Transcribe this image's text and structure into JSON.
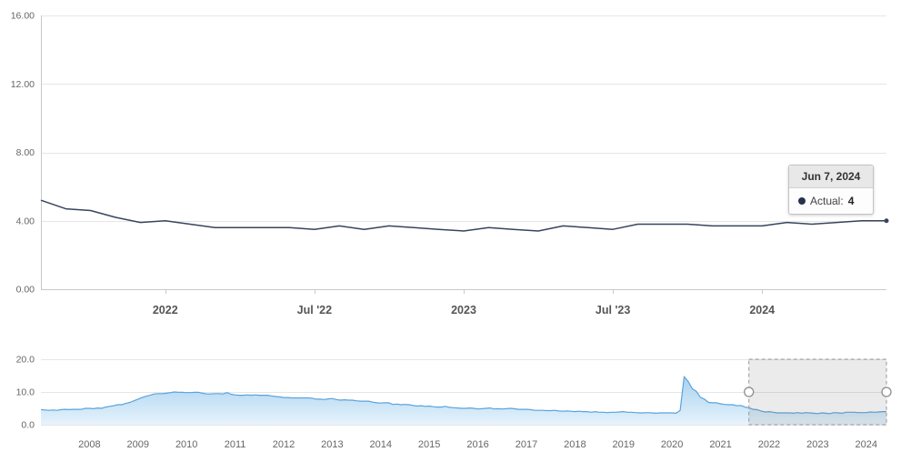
{
  "colors": {
    "main_line": "#36455e",
    "grid": "#e6e6e6",
    "axis": "#c9c9c9",
    "axis_label": "#666666",
    "x_label": "#555555",
    "nav_line": "#5ba3dc",
    "nav_fill_top": "#a9d2ef",
    "nav_fill_bottom": "#e6f3fc",
    "mask_fill": "#6f6f6f",
    "mask_border": "#999999",
    "handle_fill": "#ffffff",
    "handle_stroke": "#8c8c8c",
    "tooltip_marker": "#26334d"
  },
  "tooltip": {
    "date": "Jun 7, 2024",
    "series_label": "Actual:",
    "value": "4"
  },
  "chart_data": [
    {
      "type": "line",
      "name": "Actual",
      "interval": "monthly",
      "start_month": "2021-08",
      "values": [
        5.2,
        4.7,
        4.6,
        4.2,
        3.9,
        4.0,
        3.8,
        3.6,
        3.6,
        3.6,
        3.6,
        3.5,
        3.7,
        3.5,
        3.7,
        3.6,
        3.5,
        3.4,
        3.6,
        3.5,
        3.4,
        3.7,
        3.6,
        3.5,
        3.8,
        3.8,
        3.8,
        3.7,
        3.7,
        3.7,
        3.9,
        3.8,
        3.9,
        4.0,
        4.0
      ],
      "ylim": [
        0,
        16
      ],
      "yticks": [
        {
          "value": 16,
          "label": "16.00"
        },
        {
          "value": 12,
          "label": "12.00"
        },
        {
          "value": 8,
          "label": "8.00"
        },
        {
          "value": 4,
          "label": "4.00"
        },
        {
          "value": 0,
          "label": "0.00"
        }
      ],
      "xticks": [
        {
          "index": 5,
          "label": "2022"
        },
        {
          "index": 11,
          "label": "Jul '22"
        },
        {
          "index": 17,
          "label": "2023"
        },
        {
          "index": 23,
          "label": "Jul '23"
        },
        {
          "index": 29,
          "label": "2024"
        }
      ],
      "grid": "horizontal",
      "legend": "none"
    },
    {
      "type": "area",
      "role": "navigator",
      "interval": "monthly",
      "start_month": "2007-01",
      "values": [
        4.6,
        4.5,
        4.4,
        4.5,
        4.4,
        4.6,
        4.7,
        4.6,
        4.7,
        4.7,
        4.7,
        5.0,
        5.0,
        4.9,
        5.1,
        5.0,
        5.4,
        5.6,
        5.8,
        6.1,
        6.1,
        6.5,
        6.8,
        7.3,
        7.8,
        8.3,
        8.7,
        9.0,
        9.4,
        9.5,
        9.5,
        9.6,
        9.8,
        10.0,
        9.9,
        9.9,
        9.8,
        9.8,
        9.9,
        9.9,
        9.6,
        9.4,
        9.4,
        9.5,
        9.5,
        9.4,
        9.8,
        9.3,
        9.1,
        9.0,
        9.0,
        9.1,
        9.0,
        9.1,
        9.0,
        9.0,
        9.0,
        8.8,
        8.6,
        8.5,
        8.3,
        8.3,
        8.2,
        8.2,
        8.2,
        8.2,
        8.2,
        8.1,
        7.8,
        7.8,
        7.7,
        7.9,
        8.0,
        7.7,
        7.5,
        7.6,
        7.5,
        7.5,
        7.3,
        7.2,
        7.2,
        7.2,
        6.9,
        6.7,
        6.6,
        6.7,
        6.7,
        6.2,
        6.3,
        6.1,
        6.2,
        6.1,
        5.9,
        5.7,
        5.8,
        5.6,
        5.7,
        5.5,
        5.4,
        5.4,
        5.6,
        5.3,
        5.2,
        5.1,
        5.0,
        5.0,
        5.1,
        5.0,
        4.8,
        4.9,
        5.0,
        5.1,
        4.8,
        4.9,
        4.8,
        4.9,
        5.0,
        4.9,
        4.7,
        4.7,
        4.7,
        4.6,
        4.4,
        4.4,
        4.4,
        4.3,
        4.3,
        4.4,
        4.2,
        4.1,
        4.2,
        4.1,
        4.0,
        4.1,
        4.0,
        4.0,
        3.8,
        4.0,
        3.8,
        3.8,
        3.7,
        3.8,
        3.8,
        3.9,
        4.0,
        3.8,
        3.8,
        3.7,
        3.6,
        3.6,
        3.7,
        3.6,
        3.5,
        3.6,
        3.6,
        3.6,
        3.6,
        3.5,
        4.4,
        14.7,
        13.2,
        11.0,
        10.2,
        8.4,
        7.8,
        6.8,
        6.7,
        6.7,
        6.4,
        6.2,
        6.1,
        6.1,
        5.8,
        5.9,
        5.4,
        5.2,
        4.7,
        4.6,
        4.2,
        3.9,
        4.0,
        3.8,
        3.6,
        3.6,
        3.6,
        3.6,
        3.5,
        3.7,
        3.5,
        3.7,
        3.6,
        3.5,
        3.4,
        3.6,
        3.5,
        3.4,
        3.7,
        3.6,
        3.5,
        3.8,
        3.8,
        3.8,
        3.7,
        3.7,
        3.7,
        3.9,
        3.8,
        3.9,
        4.0,
        4.0
      ],
      "ylim": [
        0,
        20
      ],
      "yticks": [
        {
          "value": 20,
          "label": "20.0"
        },
        {
          "value": 10,
          "label": "10.0"
        },
        {
          "value": 0,
          "label": "0.0"
        }
      ],
      "xticks": [
        {
          "year": 2008,
          "label": "2008"
        },
        {
          "year": 2009,
          "label": "2009"
        },
        {
          "year": 2010,
          "label": "2010"
        },
        {
          "year": 2011,
          "label": "2011"
        },
        {
          "year": 2012,
          "label": "2012"
        },
        {
          "year": 2013,
          "label": "2013"
        },
        {
          "year": 2014,
          "label": "2014"
        },
        {
          "year": 2015,
          "label": "2015"
        },
        {
          "year": 2016,
          "label": "2016"
        },
        {
          "year": 2017,
          "label": "2017"
        },
        {
          "year": 2018,
          "label": "2018"
        },
        {
          "year": 2019,
          "label": "2019"
        },
        {
          "year": 2020,
          "label": "2020"
        },
        {
          "year": 2021,
          "label": "2021"
        },
        {
          "year": 2022,
          "label": "2022"
        },
        {
          "year": 2023,
          "label": "2023"
        },
        {
          "year": 2024,
          "label": "2024"
        }
      ],
      "selection": {
        "start_month": "2021-08",
        "end_month": "2024-06"
      }
    }
  ]
}
